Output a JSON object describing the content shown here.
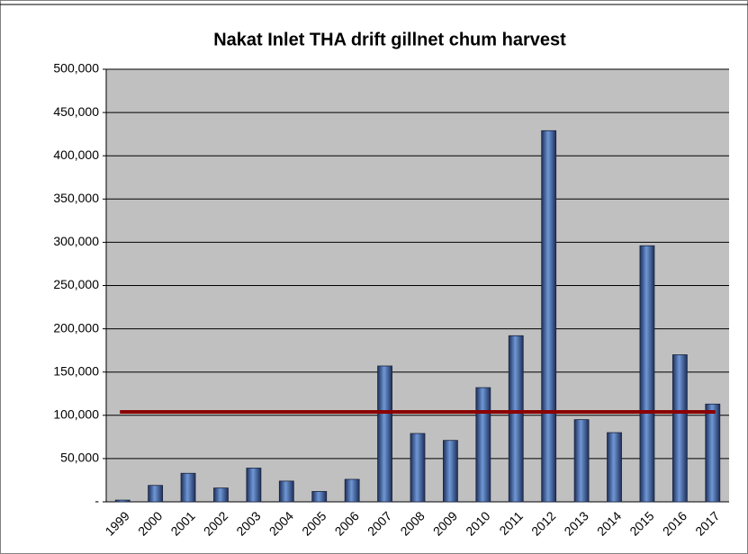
{
  "chart_data": {
    "type": "bar",
    "title": "Nakat Inlet THA drift gillnet chum harvest",
    "categories": [
      "1999",
      "2000",
      "2001",
      "2002",
      "2003",
      "2004",
      "2005",
      "2006",
      "2007",
      "2008",
      "2009",
      "2010",
      "2011",
      "2012",
      "2013",
      "2014",
      "2015",
      "2016",
      "2017"
    ],
    "values": [
      2000,
      19000,
      33000,
      16000,
      39000,
      24000,
      12000,
      26000,
      157000,
      79000,
      71000,
      132000,
      192000,
      429000,
      95000,
      80000,
      296000,
      170000,
      113000
    ],
    "color": "#3a5a9a",
    "mean_line": {
      "value": 104000,
      "color": "#8b0000"
    },
    "ylim": [
      0,
      500000
    ],
    "yticks": [
      {
        "value": 0,
        "label": "-"
      },
      {
        "value": 50000,
        "label": "50,000"
      },
      {
        "value": 100000,
        "label": "100,000"
      },
      {
        "value": 150000,
        "label": "150,000"
      },
      {
        "value": 200000,
        "label": "200,000"
      },
      {
        "value": 250000,
        "label": "250,000"
      },
      {
        "value": 300000,
        "label": "300,000"
      },
      {
        "value": 350000,
        "label": "350,000"
      },
      {
        "value": 400000,
        "label": "400,000"
      },
      {
        "value": 450000,
        "label": "450,000"
      },
      {
        "value": 500000,
        "label": "500,000"
      }
    ],
    "grid": true
  }
}
